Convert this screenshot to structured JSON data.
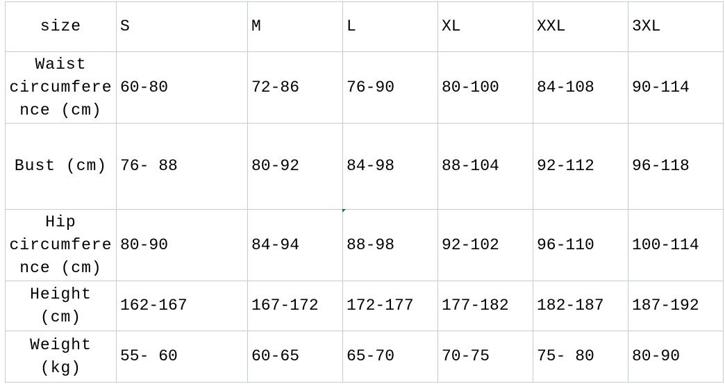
{
  "header": {
    "label": "size",
    "sizes": [
      "S",
      "M",
      "L",
      "XL",
      "XXL",
      "3XL"
    ]
  },
  "rows": [
    {
      "label": "Waist\ncircumfere\nnce (cm)",
      "values": [
        "60-80",
        "72-86",
        "76-90",
        "80-100",
        "84-108",
        "90-114"
      ]
    },
    {
      "label": "Bust (cm)",
      "values": [
        "76- 88",
        "80-92",
        "84-98",
        "88-104",
        "92-112",
        "96-118"
      ]
    },
    {
      "label": "Hip\ncircumfere\nnce (cm)",
      "values": [
        "80-90",
        "84-94",
        "88-98",
        "92-102",
        "96-110",
        "100-114"
      ]
    },
    {
      "label": "Height\n(cm)",
      "values": [
        "162-167",
        "167-172",
        "172-177",
        "177-182",
        "182-187",
        "187-192"
      ]
    },
    {
      "label": "Weight\n(kg)",
      "values": [
        "55- 60",
        "60-65",
        "65-70",
        "70-75",
        "75- 80",
        "80-90"
      ]
    }
  ],
  "colors": {
    "grid": "#c6c9d6",
    "cell_marker": "#0a7a0a"
  }
}
